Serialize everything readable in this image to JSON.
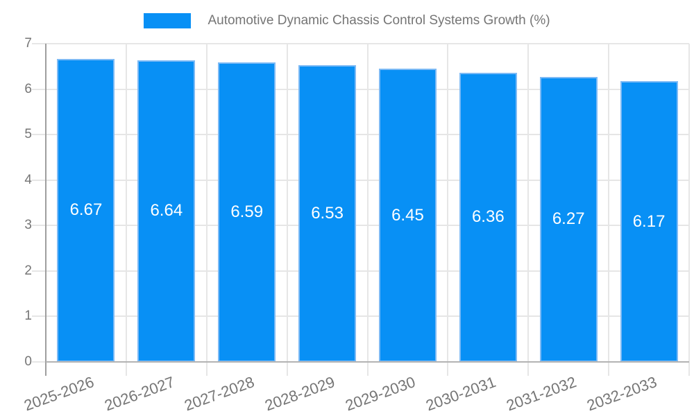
{
  "chart_data": {
    "type": "bar",
    "title": "Automotive Dynamic Chassis Control Systems Growth (%)",
    "categories": [
      "2025-2026",
      "2026-2027",
      "2027-2028",
      "2028-2029",
      "2029-2030",
      "2030-2031",
      "2031-2032",
      "2032-2033"
    ],
    "values": [
      6.67,
      6.64,
      6.59,
      6.53,
      6.45,
      6.36,
      6.27,
      6.17
    ],
    "value_labels": [
      "6.67",
      "6.64",
      "6.59",
      "6.53",
      "6.45",
      "6.36",
      "6.27",
      "6.17"
    ],
    "xlabel": "",
    "ylabel": "",
    "ylim": [
      0,
      7
    ],
    "yticks": [
      0,
      1,
      2,
      3,
      4,
      5,
      6,
      7
    ],
    "grid": true,
    "legend_position": "top",
    "colors": {
      "bar_fill": "#0890f5",
      "bar_border": "#7dbaf5",
      "value_label": "#ffffff",
      "grid_line": "#e6e6e6",
      "y_axis_line": "#9e9e9e",
      "x_axis_line": "#b3b3b3",
      "tick_text": "#757575",
      "legend_text": "#757575",
      "background": "#ffffff"
    }
  }
}
